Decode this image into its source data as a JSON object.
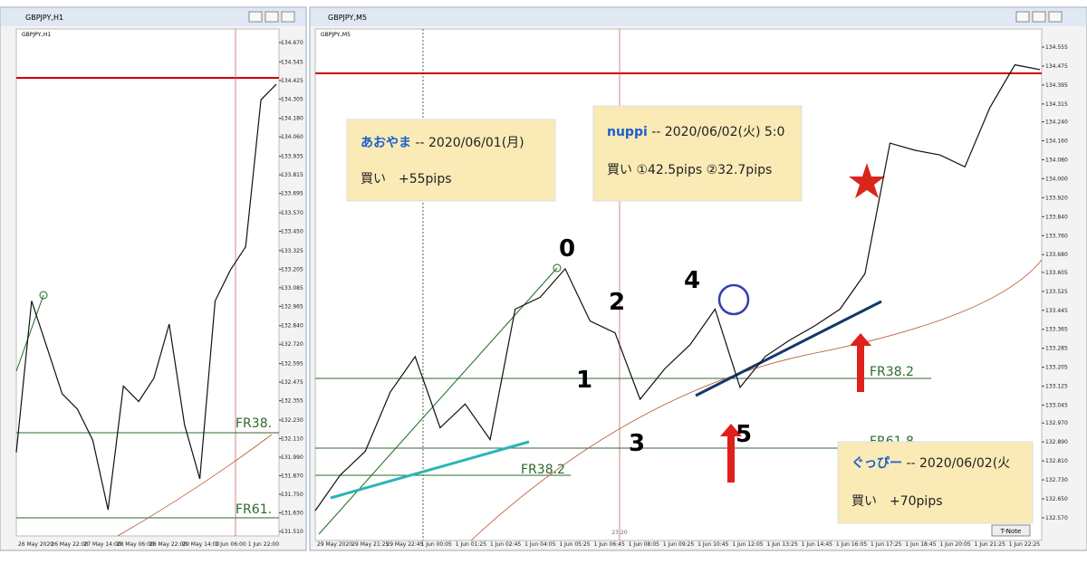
{
  "windows": [
    {
      "title": "GBPJPY,H1",
      "symbol_label": "GBPJPY.,H1",
      "yticks": [
        {
          "value": 134.67,
          "label": "134.670"
        },
        134.545,
        134.425,
        134.305,
        {
          "value": 134.18,
          "label": "134.180"
        },
        {
          "value": 134.06,
          "label": "134.060"
        },
        133.935,
        133.815,
        133.695,
        {
          "value": 133.57,
          "label": "133.570"
        },
        {
          "value": 133.45,
          "label": "133.450"
        },
        133.325,
        133.205,
        133.085,
        132.965,
        {
          "value": 132.84,
          "label": "132.840"
        },
        {
          "value": 132.72,
          "label": "132.720"
        },
        132.595,
        132.475,
        132.355,
        {
          "value": 132.23,
          "label": "132.230"
        },
        {
          "value": 132.11,
          "label": "132.110"
        },
        {
          "value": 131.99,
          "label": "131.990"
        },
        {
          "value": 131.87,
          "label": "131.870"
        },
        {
          "value": 131.75,
          "label": "131.750"
        },
        {
          "value": 131.63,
          "label": "131.630"
        },
        {
          "value": 131.51,
          "label": "131.510"
        }
      ],
      "xlabels": [
        "26 May 2020",
        "26 May 22:00",
        "27 May 14:00",
        "28 May 06:00",
        "28 May 22:00",
        "29 May 14:00",
        "1 Jun 06:00",
        "1 Jun 22:00"
      ],
      "price_path": [
        132.02,
        133.0,
        132.7,
        132.4,
        132.3,
        132.1,
        131.65,
        132.45,
        132.35,
        132.5,
        132.85,
        132.2,
        131.85,
        133.0,
        133.2,
        133.35,
        134.3,
        134.4
      ],
      "annotations": [
        "FR38.",
        "FR61."
      ]
    },
    {
      "title": "GBPJPY,M5",
      "symbol_label": "GBPJPY.,M5",
      "yticks": [
        134.555,
        134.475,
        134.395,
        134.315,
        {
          "value": 134.24,
          "label": "134.240"
        },
        {
          "value": 134.16,
          "label": "134.160"
        },
        {
          "value": 134.08,
          "label": "134.080"
        },
        {
          "value": 134.0,
          "label": "134.000"
        },
        {
          "value": 133.92,
          "label": "133.920"
        },
        {
          "value": 133.84,
          "label": "133.840"
        },
        {
          "value": 133.76,
          "label": "133.760"
        },
        {
          "value": 133.68,
          "label": "133.680"
        },
        133.605,
        133.525,
        133.445,
        133.365,
        133.285,
        133.205,
        133.125,
        133.045,
        {
          "value": 132.97,
          "label": "132.970"
        },
        {
          "value": 132.89,
          "label": "132.890"
        },
        {
          "value": 132.81,
          "label": "132.810"
        },
        {
          "value": 132.73,
          "label": "132.730"
        },
        {
          "value": 132.65,
          "label": "132.650"
        },
        {
          "value": 132.57,
          "label": "132.570"
        }
      ],
      "xlabels": [
        "29 May 2020",
        "29 May 21:25",
        "29 May 22:45",
        "1 Jun 00:05",
        "1 Jun 01:25",
        "1 Jun 02:45",
        "1 Jun 04:05",
        "1 Jun 05:25",
        "1 Jun 06:45",
        "1 Jun 08:05",
        "1 Jun 09:25",
        "1 Jun 10:45",
        "1 Jun 12:05",
        "1 Jun 13:25",
        "1 Jun 14:45",
        "1 Jun 16:05",
        "1 Jun 17:25",
        "1 Jun 18:45",
        "1 Jun 20:05",
        "1 Jun 21:25",
        "1 Jun 22:25"
      ],
      "price_path": [
        132.6,
        132.75,
        132.85,
        133.1,
        133.25,
        132.95,
        133.05,
        132.9,
        133.45,
        133.5,
        133.62,
        133.4,
        133.35,
        133.07,
        133.2,
        133.3,
        133.45,
        133.12,
        133.25,
        133.32,
        133.38,
        133.45,
        133.6,
        134.15,
        134.12,
        134.1,
        134.05,
        134.3,
        134.48,
        134.46
      ],
      "annotations": [
        "FR38.2",
        "FR38.2",
        "FR61.8"
      ]
    }
  ],
  "notes": [
    {
      "name": "あおやま",
      "date": " -- 2020/06/01(月)",
      "trade": "買い　+55pips"
    },
    {
      "name": "nuppi",
      "date": " -- 2020/06/02(火) 5:0",
      "trade": "買い ①42.5pips ②32.7pips"
    },
    {
      "name": "ぐっぴー",
      "date": " -- 2020/06/02(火",
      "trade": "買い　+70pips"
    }
  ],
  "wave_labels": [
    "0",
    "1",
    "2",
    "3",
    "4",
    "5"
  ],
  "button": "T-Note",
  "time_marker": "23:20"
}
